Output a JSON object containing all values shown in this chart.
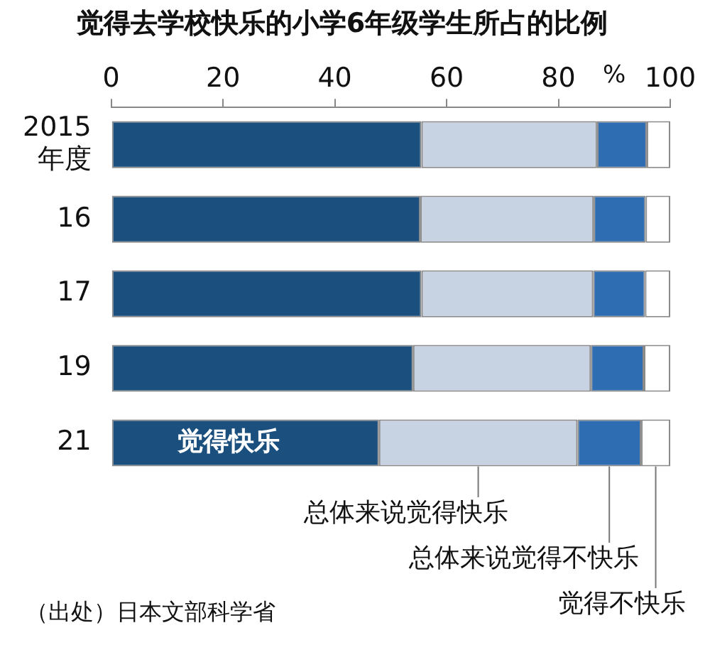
{
  "chart_data": {
    "type": "bar",
    "orientation": "horizontal",
    "stacked": true,
    "title": "觉得去学校快乐的小学6年级学生所占的比例",
    "xlabel": "%",
    "categories": [
      "2015\n年度",
      "16",
      "17",
      "19",
      "21"
    ],
    "series": [
      {
        "name": "觉得快乐",
        "color": "#1b4f7e",
        "values": [
          55.5,
          55.3,
          55.5,
          54.0,
          47.9
        ]
      },
      {
        "name": "总体来说觉得快乐",
        "color": "#c7d2e2",
        "values": [
          31.4,
          31.0,
          30.7,
          31.8,
          35.5
        ]
      },
      {
        "name": "总体来说觉得不快乐",
        "color": "#2f6db3",
        "values": [
          8.9,
          9.3,
          9.3,
          9.5,
          11.4
        ]
      },
      {
        "name": "觉得不快乐",
        "color": "#ffffff",
        "values": [
          4.2,
          4.4,
          4.5,
          4.7,
          5.2
        ]
      }
    ],
    "xlim": [
      0,
      100
    ],
    "xticks": [
      0,
      20,
      40,
      60,
      80,
      100
    ],
    "grid": false,
    "legend": false,
    "annotations": [
      "（出处）日本文部科学省"
    ]
  }
}
